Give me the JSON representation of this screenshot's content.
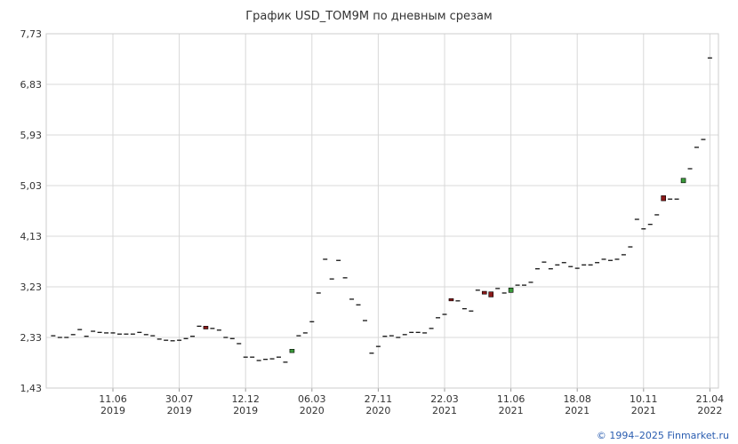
{
  "chart_data": {
    "type": "candlestick",
    "title": "График USD_TOM9M по дневным срезам",
    "categories": [
      null,
      null,
      null,
      null,
      null,
      null,
      null,
      null,
      null,
      "11.06\n2019",
      null,
      null,
      null,
      null,
      null,
      null,
      null,
      null,
      null,
      "30.07\n2019",
      null,
      null,
      null,
      null,
      null,
      null,
      null,
      null,
      null,
      "12.12\n2019",
      null,
      null,
      null,
      null,
      null,
      null,
      null,
      null,
      null,
      "06.03\n2020",
      null,
      null,
      null,
      null,
      null,
      null,
      null,
      null,
      null,
      "27.11\n2020",
      null,
      null,
      null,
      null,
      null,
      null,
      null,
      null,
      null,
      "22.03\n2021",
      null,
      null,
      null,
      null,
      null,
      null,
      null,
      null,
      null,
      "11.06\n2021",
      null,
      null,
      null,
      null,
      null,
      null,
      null,
      null,
      null,
      "18.08\n2021",
      null,
      null,
      null,
      null,
      null,
      null,
      null,
      null,
      null,
      "10.11\n2021",
      null,
      null,
      null,
      null,
      null,
      null,
      null,
      null,
      null,
      "21.04\n2022"
    ],
    "open": [
      2.36,
      2.33,
      2.33,
      2.38,
      2.47,
      2.35,
      2.44,
      2.42,
      2.41,
      2.41,
      2.39,
      2.39,
      2.39,
      2.42,
      2.38,
      2.36,
      2.3,
      2.28,
      2.27,
      2.28,
      2.31,
      2.35,
      2.53,
      2.53,
      2.49,
      2.46,
      2.33,
      2.31,
      2.22,
      1.98,
      1.98,
      1.92,
      1.94,
      1.95,
      1.98,
      1.89,
      2.06,
      2.36,
      2.41,
      2.61,
      3.12,
      3.72,
      3.37,
      3.7,
      3.39,
      3.01,
      2.91,
      2.63,
      2.05,
      2.17,
      2.35,
      2.36,
      2.33,
      2.38,
      2.42,
      2.42,
      2.41,
      2.49,
      2.68,
      2.74,
      3.02,
      2.98,
      2.84,
      2.8,
      3.17,
      3.15,
      3.14,
      3.2,
      3.12,
      3.13,
      3.26,
      3.26,
      3.31,
      3.55,
      3.67,
      3.55,
      3.62,
      3.66,
      3.59,
      3.56,
      3.62,
      3.62,
      3.66,
      3.72,
      3.7,
      3.72,
      3.8,
      3.94,
      4.43,
      4.26,
      4.34,
      4.51,
      4.85,
      4.79,
      4.79,
      5.08,
      5.33,
      5.71,
      5.85,
      7.3
    ],
    "close": [
      2.36,
      2.33,
      2.33,
      2.38,
      2.47,
      2.35,
      2.44,
      2.42,
      2.41,
      2.41,
      2.39,
      2.39,
      2.39,
      2.42,
      2.38,
      2.36,
      2.3,
      2.28,
      2.27,
      2.28,
      2.31,
      2.35,
      2.53,
      2.48,
      2.49,
      2.46,
      2.33,
      2.31,
      2.22,
      1.98,
      1.98,
      1.92,
      1.94,
      1.95,
      1.98,
      1.89,
      2.12,
      2.36,
      2.41,
      2.61,
      3.12,
      3.72,
      3.37,
      3.7,
      3.39,
      3.01,
      2.91,
      2.63,
      2.05,
      2.17,
      2.35,
      2.36,
      2.33,
      2.38,
      2.42,
      2.42,
      2.41,
      2.49,
      2.68,
      2.74,
      2.98,
      2.98,
      2.84,
      2.8,
      3.17,
      3.1,
      3.05,
      3.2,
      3.12,
      3.21,
      3.26,
      3.26,
      3.31,
      3.55,
      3.67,
      3.55,
      3.62,
      3.66,
      3.59,
      3.56,
      3.62,
      3.62,
      3.66,
      3.72,
      3.7,
      3.72,
      3.8,
      3.94,
      4.43,
      4.26,
      4.34,
      4.51,
      4.76,
      4.79,
      4.79,
      5.16,
      5.33,
      5.71,
      5.85,
      7.3
    ],
    "up_color": "#3a9a3a",
    "down_color": "#8b1a1a",
    "flat_color": "#000000",
    "ylim": [
      1.43,
      7.73
    ],
    "yticks": [
      {
        "value": 1.43,
        "label": "1,43"
      },
      {
        "value": 2.33,
        "label": "2,33"
      },
      {
        "value": 3.23,
        "label": "3,23"
      },
      {
        "value": 4.13,
        "label": "4,13"
      },
      {
        "value": 5.03,
        "label": "5,03"
      },
      {
        "value": 5.93,
        "label": "5,93"
      },
      {
        "value": 6.83,
        "label": "6,83"
      },
      {
        "value": 7.73,
        "label": "7,73"
      }
    ],
    "grid": true
  },
  "footer": "© 1994–2025 Finmarket.ru"
}
